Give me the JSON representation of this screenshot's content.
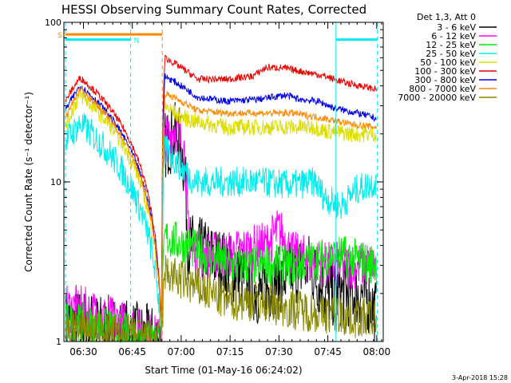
{
  "chart_data": {
    "type": "line",
    "title": "HESSI Observing Summary Count Rates, Corrected",
    "xlabel": "Start Time (01-May-16 06:24:02)",
    "ylabel": "Corrected Count Rate (s⁻¹ detector⁻¹)",
    "yscale": "log",
    "ylim": [
      1,
      100
    ],
    "xlim_minutes_since_0624": [
      0,
      98
    ],
    "y_ticks": [
      "1",
      "10",
      "100"
    ],
    "x_ticks": [
      {
        "label": "06:30",
        "t": 6
      },
      {
        "label": "06:45",
        "t": 21
      },
      {
        "label": "07:00",
        "t": 36
      },
      {
        "label": "07:15",
        "t": 51
      },
      {
        "label": "07:30",
        "t": 66
      },
      {
        "label": "07:45",
        "t": 81
      },
      {
        "label": "08:00",
        "t": 96
      }
    ],
    "legend_title": "Det 1,3, Att 0",
    "legend_position": "right",
    "flag_labels": {
      "saa": "S",
      "night": "N"
    },
    "footer_date": "3-Apr-2018 15:28",
    "series": [
      {
        "name": "3 - 6 keV",
        "color": "#000000",
        "noise": 0.5,
        "points": [
          [
            0.5,
            1.3
          ],
          [
            5,
            1.3
          ],
          [
            30,
            1
          ],
          [
            31,
            17
          ],
          [
            35,
            20
          ],
          [
            37,
            12
          ],
          [
            38,
            4
          ],
          [
            50,
            3
          ],
          [
            60,
            2
          ],
          [
            75,
            3
          ],
          [
            80,
            2
          ],
          [
            92,
            2
          ],
          [
            96,
            1.5
          ]
        ]
      },
      {
        "name": "6 - 12 keV",
        "color": "#ff00ff",
        "noise": 0.35,
        "points": [
          [
            0.5,
            1.6
          ],
          [
            5,
            1.6
          ],
          [
            30,
            1
          ],
          [
            31,
            18
          ],
          [
            34,
            22
          ],
          [
            37,
            16
          ],
          [
            38,
            5
          ],
          [
            40,
            3.5
          ],
          [
            50,
            3.5
          ],
          [
            62,
            4
          ],
          [
            66,
            5
          ],
          [
            70,
            3.5
          ],
          [
            80,
            3
          ],
          [
            96,
            3
          ]
        ]
      },
      {
        "name": "12 - 25 keV",
        "color": "#00ee00",
        "noise": 0.3,
        "points": [
          [
            0.5,
            1.3
          ],
          [
            5,
            1.3
          ],
          [
            30,
            1
          ],
          [
            31,
            4.5
          ],
          [
            50,
            3
          ],
          [
            70,
            3
          ],
          [
            85,
            3.5
          ],
          [
            96,
            3
          ]
        ]
      },
      {
        "name": "25 - 50 keV",
        "color": "#00eeee",
        "noise": 0.22,
        "points": [
          [
            0.5,
            18
          ],
          [
            5,
            23
          ],
          [
            30,
            1
          ],
          [
            31,
            16
          ],
          [
            35,
            13
          ],
          [
            40,
            10
          ],
          [
            50,
            10
          ],
          [
            60,
            10
          ],
          [
            70,
            9.5
          ],
          [
            77,
            10
          ],
          [
            80,
            8
          ],
          [
            85,
            7
          ],
          [
            90,
            9
          ],
          [
            96,
            10
          ]
        ]
      },
      {
        "name": "50 - 100 keV",
        "color": "#dddd00",
        "noise": 0.12,
        "points": [
          [
            0.5,
            22
          ],
          [
            5,
            35
          ],
          [
            30,
            1
          ],
          [
            31,
            30
          ],
          [
            35,
            26
          ],
          [
            40,
            24
          ],
          [
            50,
            22
          ],
          [
            60,
            22
          ],
          [
            70,
            22
          ],
          [
            77,
            22
          ],
          [
            80,
            21
          ],
          [
            88,
            20
          ],
          [
            96,
            20
          ]
        ]
      },
      {
        "name": "100 - 300 keV",
        "color": "#ee0000",
        "noise": 0.05,
        "points": [
          [
            0.5,
            32
          ],
          [
            5,
            45
          ],
          [
            30,
            1
          ],
          [
            31,
            60
          ],
          [
            36,
            52
          ],
          [
            41,
            44
          ],
          [
            50,
            44
          ],
          [
            58,
            46
          ],
          [
            62,
            52
          ],
          [
            67,
            52
          ],
          [
            71,
            50
          ],
          [
            76,
            48
          ],
          [
            80,
            46
          ],
          [
            86,
            42
          ],
          [
            96,
            38
          ]
        ]
      },
      {
        "name": "300 - 800 keV",
        "color": "#0000ee",
        "noise": 0.05,
        "points": [
          [
            0.5,
            28
          ],
          [
            5,
            40
          ],
          [
            30,
            1
          ],
          [
            31,
            46
          ],
          [
            36,
            40
          ],
          [
            41,
            34
          ],
          [
            50,
            32
          ],
          [
            60,
            33
          ],
          [
            68,
            35
          ],
          [
            72,
            33
          ],
          [
            78,
            32
          ],
          [
            83,
            29
          ],
          [
            90,
            27
          ],
          [
            96,
            25
          ]
        ]
      },
      {
        "name": "800 - 7000 keV",
        "color": "#ff8800",
        "noise": 0.05,
        "points": [
          [
            0.5,
            25
          ],
          [
            5,
            38
          ],
          [
            30,
            1
          ],
          [
            31,
            36
          ],
          [
            36,
            32
          ],
          [
            41,
            28
          ],
          [
            50,
            27
          ],
          [
            60,
            27
          ],
          [
            70,
            27
          ],
          [
            80,
            25
          ],
          [
            88,
            23
          ],
          [
            96,
            22
          ]
        ]
      },
      {
        "name": "7000 - 20000 keV",
        "color": "#888800",
        "noise": 0.3,
        "points": [
          [
            0.5,
            1.2
          ],
          [
            5,
            1.2
          ],
          [
            30,
            1
          ],
          [
            31,
            2.7
          ],
          [
            40,
            2.2
          ],
          [
            50,
            1.8
          ],
          [
            60,
            1.8
          ],
          [
            70,
            1.6
          ],
          [
            80,
            1.5
          ],
          [
            90,
            1.4
          ],
          [
            96,
            1.4
          ]
        ]
      }
    ],
    "vertical_markers": [
      {
        "t": 0.5,
        "color": "#00eeee",
        "style": "dashed"
      },
      {
        "t": 20.5,
        "color": "#00eeee",
        "style": "dashed"
      },
      {
        "t": 83.5,
        "color": "#00eeee",
        "style": "solid"
      },
      {
        "t": 96.2,
        "color": "#00eeee",
        "style": "dashed"
      },
      {
        "t": 30.2,
        "color": "#ff8800",
        "style": "dashed"
      }
    ],
    "flag_bars": [
      {
        "kind": "saa",
        "t0": 0.5,
        "t1": 30.2,
        "level": 84,
        "color": "#ff8800"
      },
      {
        "kind": "night",
        "t0": 0.5,
        "t1": 20.5,
        "level": 78,
        "color": "#00eeee"
      },
      {
        "kind": "night",
        "t0": 83.5,
        "t1": 96.2,
        "level": 78,
        "color": "#00eeee"
      }
    ]
  }
}
